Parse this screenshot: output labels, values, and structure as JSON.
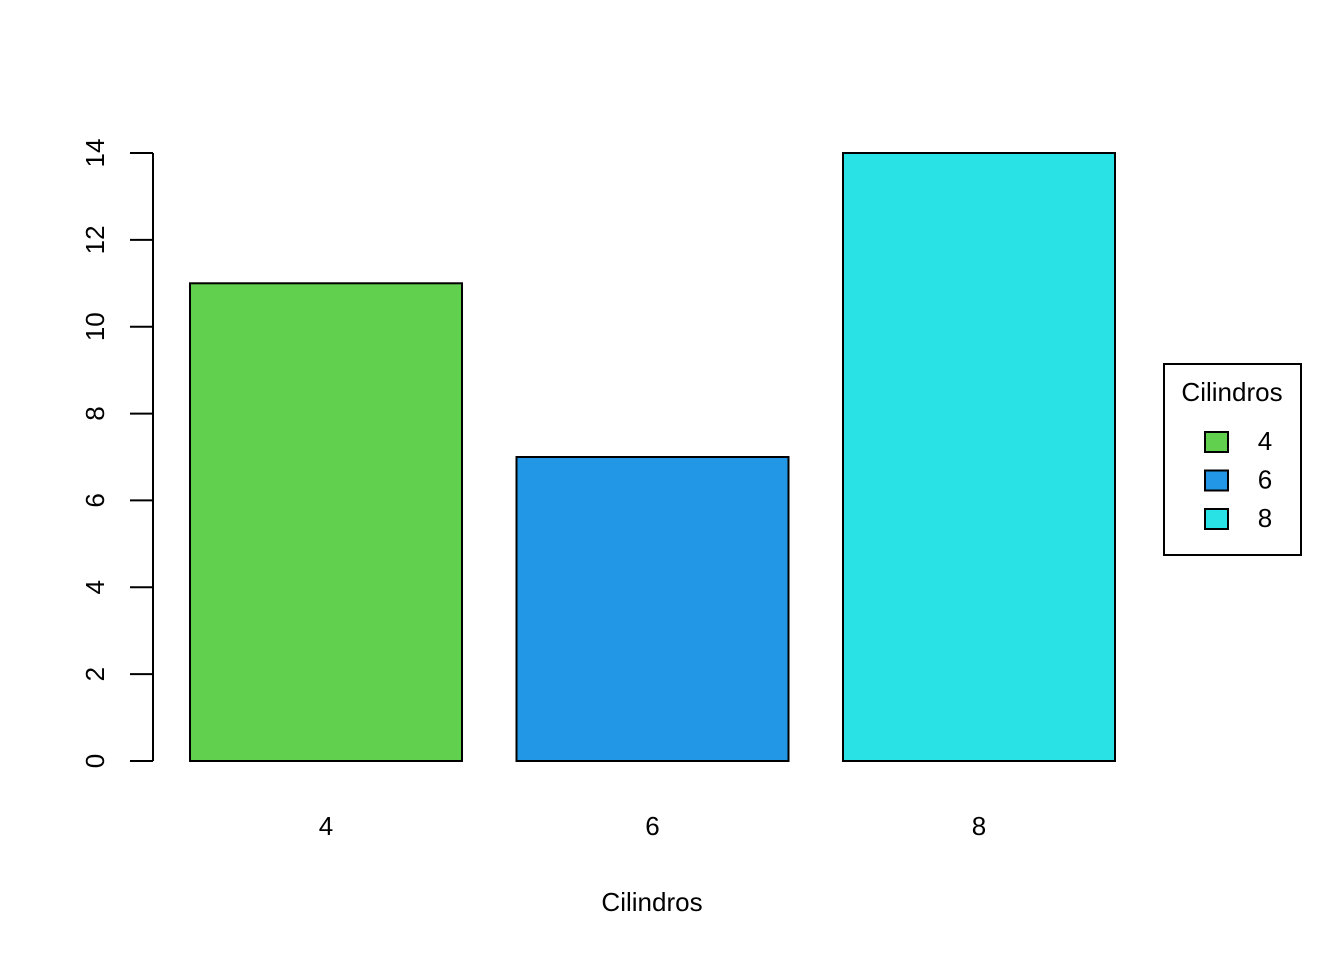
{
  "chart_data": {
    "type": "bar",
    "x_label": "Cilindros",
    "legend_title": "Cilindros",
    "categories": [
      "4",
      "6",
      "8"
    ],
    "values": [
      11,
      7,
      14
    ],
    "colors": [
      "#61d04f",
      "#2297e6",
      "#28e2e5"
    ],
    "ylim": [
      0,
      14
    ],
    "yticks": [
      0,
      2,
      4,
      6,
      8,
      10,
      12,
      14
    ],
    "legend": "right"
  }
}
